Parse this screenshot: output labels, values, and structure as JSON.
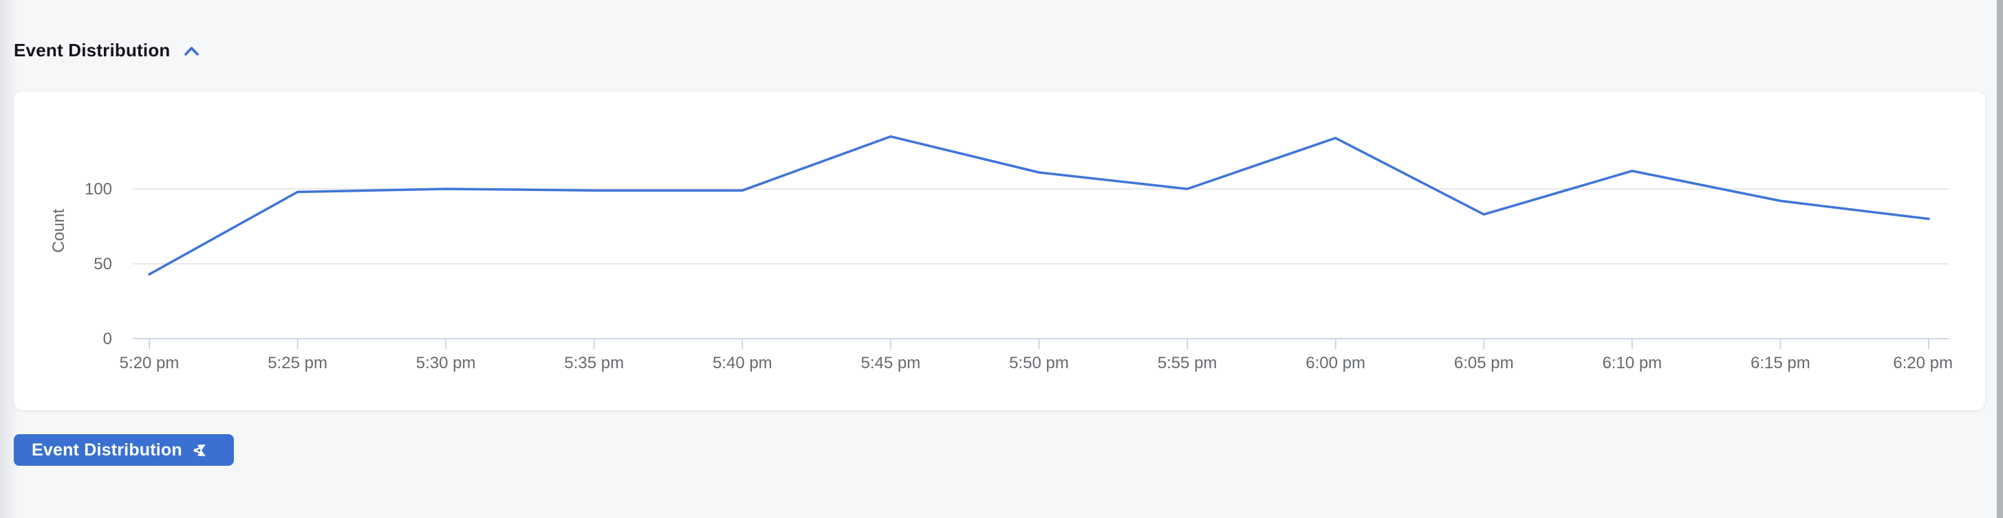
{
  "header": {
    "title": "Event Distribution",
    "collapse_icon": "chevron-up"
  },
  "chart_data": {
    "type": "line",
    "x": [
      "5:20 pm",
      "5:25 pm",
      "5:30 pm",
      "5:35 pm",
      "5:40 pm",
      "5:45 pm",
      "5:50 pm",
      "5:55 pm",
      "6:00 pm",
      "6:05 pm",
      "6:10 pm",
      "6:15 pm",
      "6:20 pm"
    ],
    "series": [
      {
        "name": "Count",
        "values": [
          43,
          98,
          100,
          99,
          99,
          135,
          111,
          100,
          134,
          83,
          112,
          92,
          80
        ]
      }
    ],
    "title": "",
    "xlabel": "",
    "ylabel": "Count",
    "yticks": [
      0,
      50,
      100
    ],
    "ylim": [
      0,
      160
    ],
    "grid": "horizontal",
    "legend": "none",
    "colors": {
      "line": "#3f75d8",
      "gridline": "#e8e8e8",
      "axis_line": "#ccd6eb",
      "tick_label": "#666a6e",
      "axis_title": "#66686c"
    }
  },
  "footer_button": {
    "label": "Event Distribution",
    "icon": "share-icon",
    "color": "#3a71d0"
  }
}
